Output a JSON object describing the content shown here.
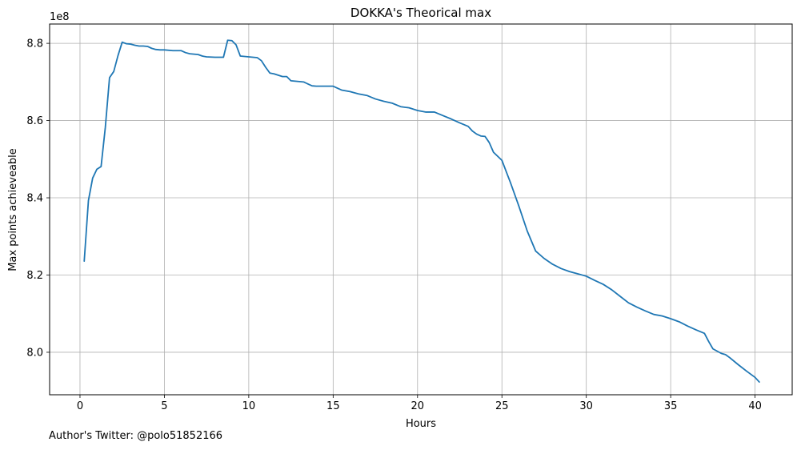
{
  "chart_data": {
    "type": "line",
    "title": "DOKKA's Theorical max",
    "xlabel": "Hours",
    "ylabel": "Max points achieveable",
    "y_offset_label": "1e8",
    "xlim": [
      -1.8,
      42.2
    ],
    "ylim": [
      7.89,
      8.85
    ],
    "xticks": [
      0,
      5,
      10,
      15,
      20,
      25,
      30,
      35,
      40
    ],
    "xtick_labels": [
      "0",
      "5",
      "10",
      "15",
      "20",
      "25",
      "30",
      "35",
      "40"
    ],
    "yticks": [
      8.0,
      8.2,
      8.4,
      8.6,
      8.8
    ],
    "ytick_labels": [
      "8.0",
      "8.2",
      "8.4",
      "8.6",
      "8.8"
    ],
    "grid": true,
    "line_color": "#1f77b4",
    "x": [
      0.25,
      0.5,
      0.75,
      1.0,
      1.25,
      1.5,
      1.75,
      2.0,
      2.25,
      2.5,
      2.75,
      3.0,
      3.25,
      3.5,
      3.75,
      4.0,
      4.25,
      4.5,
      4.75,
      5.0,
      5.5,
      6.0,
      6.25,
      6.5,
      6.75,
      7.0,
      7.25,
      7.5,
      8.0,
      8.5,
      8.75,
      9.0,
      9.25,
      9.5,
      10.0,
      10.25,
      10.5,
      10.75,
      11.0,
      11.25,
      11.5,
      12.0,
      12.25,
      12.5,
      13.0,
      13.25,
      13.5,
      13.75,
      14.0,
      14.5,
      15.0,
      15.5,
      16.0,
      16.5,
      17.0,
      17.5,
      18.0,
      18.5,
      19.0,
      19.5,
      20.0,
      20.5,
      21.0,
      21.5,
      22.0,
      22.5,
      23.0,
      23.25,
      23.5,
      23.75,
      24.0,
      24.25,
      24.5,
      25.0,
      25.5,
      26.0,
      26.5,
      27.0,
      27.5,
      28.0,
      28.5,
      29.0,
      29.5,
      30.0,
      30.5,
      31.0,
      31.5,
      32.0,
      32.5,
      33.0,
      33.5,
      34.0,
      34.5,
      35.0,
      35.5,
      36.0,
      36.5,
      37.0,
      37.25,
      37.5,
      38.0,
      38.25,
      38.5,
      39.0,
      39.5,
      40.0,
      40.25
    ],
    "y": [
      8.236,
      8.393,
      8.451,
      8.474,
      8.481,
      8.582,
      8.711,
      8.727,
      8.768,
      8.803,
      8.799,
      8.798,
      8.795,
      8.793,
      8.793,
      8.792,
      8.787,
      8.784,
      8.783,
      8.783,
      8.781,
      8.781,
      8.776,
      8.773,
      8.772,
      8.771,
      8.767,
      8.765,
      8.764,
      8.764,
      8.808,
      8.807,
      8.796,
      8.767,
      8.765,
      8.764,
      8.763,
      8.755,
      8.738,
      8.723,
      8.721,
      8.714,
      8.714,
      8.703,
      8.701,
      8.7,
      8.695,
      8.69,
      8.689,
      8.689,
      8.689,
      8.679,
      8.675,
      8.669,
      8.665,
      8.656,
      8.65,
      8.645,
      8.636,
      8.633,
      8.626,
      8.622,
      8.622,
      8.613,
      8.604,
      8.594,
      8.585,
      8.573,
      8.565,
      8.56,
      8.559,
      8.543,
      8.518,
      8.497,
      8.44,
      8.379,
      8.314,
      8.262,
      8.243,
      8.228,
      8.217,
      8.209,
      8.203,
      8.197,
      8.186,
      8.176,
      8.162,
      8.145,
      8.128,
      8.117,
      8.107,
      8.098,
      8.094,
      8.087,
      8.079,
      8.068,
      8.058,
      8.049,
      8.028,
      8.009,
      7.997,
      7.994,
      7.986,
      7.968,
      7.951,
      7.935,
      7.923
    ]
  },
  "footer": {
    "credit": "Author's Twitter: @polo51852166"
  }
}
